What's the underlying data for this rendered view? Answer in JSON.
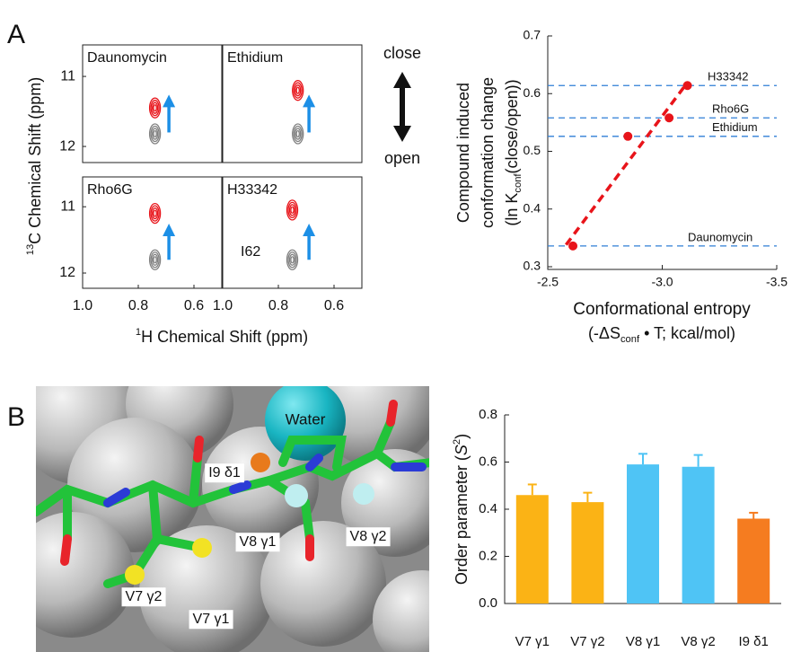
{
  "panels": [
    "A",
    "B"
  ],
  "structure": {
    "labels": [
      "Water",
      "I9 δ1",
      "V8 γ1",
      "V8 γ2",
      "V7 γ2",
      "V7 γ1"
    ]
  },
  "chart_data": [
    {
      "type": "spectra",
      "ylabel": {
        "sup": "13",
        "text": "C Chemical Shift (ppm)"
      },
      "xlabel": {
        "sup": "1",
        "text": "H Chemical Shift (ppm)"
      },
      "xlim": [
        1.0,
        0.5
      ],
      "xticks": [
        {
          "value": 1,
          "label": "1.0"
        },
        0.8,
        0.6
      ],
      "ylim": [
        10.55,
        12.23
      ],
      "yticks": [
        11,
        12
      ],
      "direction": {
        "up": "close",
        "down": "open"
      },
      "panels": [
        {
          "label": "Daunomycin",
          "peaks": [
            {
              "x": 0.74,
              "y": 11.45,
              "color": "#e8141a"
            },
            {
              "x": 0.74,
              "y": 11.82,
              "color": "#808080"
            }
          ]
        },
        {
          "label": "Ethidium",
          "peaks": [
            {
              "x": 0.73,
              "y": 11.2,
              "color": "#e8141a"
            },
            {
              "x": 0.73,
              "y": 11.82,
              "color": "#808080"
            }
          ]
        },
        {
          "label": "Rho6G",
          "peaks": [
            {
              "x": 0.74,
              "y": 11.1,
              "color": "#e8141a"
            },
            {
              "x": 0.74,
              "y": 11.8,
              "color": "#808080"
            }
          ]
        },
        {
          "label": "H33342",
          "annotation": "I62",
          "peaks": [
            {
              "x": 0.75,
              "y": 11.05,
              "color": "#e8141a"
            },
            {
              "x": 0.75,
              "y": 11.8,
              "color": "#808080"
            }
          ]
        }
      ]
    },
    {
      "type": "scatter",
      "ylabel": {
        "lines": [
          "Compound induced",
          "conformation change"
        ],
        "pre": "(ln K",
        "sub": "conf",
        "post": "(close/open))"
      },
      "xlabel": {
        "line1": "Conformational entropy",
        "pre": "(-ΔS",
        "sub": "conf",
        "post": " • T; kcal/mol)"
      },
      "xlim": [
        -2.5,
        -3.5
      ],
      "xticks": [
        -2.5,
        {
          "value": -3,
          "label": "-3.0"
        },
        -3.5
      ],
      "ylim": [
        0.3,
        0.7
      ],
      "yticks": [
        0.3,
        0.4,
        0.5,
        0.6,
        0.7
      ],
      "x": [
        -3.11,
        -3.03,
        -2.85,
        -2.61
      ],
      "values": [
        0.614,
        0.558,
        0.526,
        0.336
      ],
      "color": "#e8141a",
      "reference_lines": {
        "labels": [
          "H33342",
          "Rho6G",
          "Ethidium",
          "Daunomycin"
        ],
        "values": [
          0.614,
          0.558,
          0.526,
          0.336
        ],
        "color": "#2f7fd6"
      },
      "fit": {
        "x": [
          -2.58,
          -3.1
        ],
        "y": [
          0.338,
          0.614
        ],
        "color": "#e8141a"
      }
    },
    {
      "type": "bar",
      "ylabel": {
        "pre": "Order parameter (",
        "italic": "S",
        "sup": "2",
        "post": ")"
      },
      "categories": [
        "V7 γ1",
        "V7 γ2",
        "V8 γ1",
        "V8 γ2",
        "I9 δ1"
      ],
      "values": [
        0.46,
        0.43,
        0.59,
        0.58,
        0.36
      ],
      "errors": [
        0.045,
        0.04,
        0.045,
        0.05,
        0.025
      ],
      "colors": [
        "#fbb315",
        "#fbb315",
        "#4fc4f5",
        "#4fc4f5",
        "#f57c20"
      ],
      "ylim": [
        0,
        0.8
      ],
      "yticks": [
        {
          "value": 0,
          "label": "0.0"
        },
        0.2,
        0.4,
        0.6,
        0.8
      ]
    }
  ]
}
